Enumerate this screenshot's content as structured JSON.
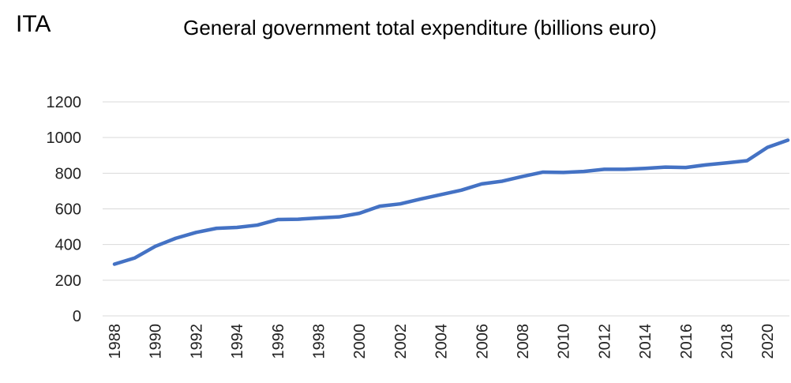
{
  "chart_data": {
    "type": "line",
    "label": "ITA",
    "title": "General government total expenditure (billions euro)",
    "x": [
      1988,
      1989,
      1990,
      1991,
      1992,
      1993,
      1994,
      1995,
      1996,
      1997,
      1998,
      1999,
      2000,
      2001,
      2002,
      2003,
      2004,
      2005,
      2006,
      2007,
      2008,
      2009,
      2010,
      2011,
      2012,
      2013,
      2014,
      2015,
      2016,
      2017,
      2018,
      2019,
      2020,
      2021
    ],
    "series": [
      {
        "name": "General government total expenditure",
        "color": "#4472c4",
        "values": [
          290,
          325,
          390,
          435,
          468,
          491,
          496,
          509,
          540,
          542,
          549,
          555,
          575,
          615,
          628,
          655,
          680,
          705,
          740,
          755,
          782,
          806,
          804,
          810,
          822,
          822,
          827,
          834,
          832,
          847,
          858,
          870,
          945,
          985
        ]
      }
    ],
    "xlim": [
      1988,
      2021
    ],
    "xticks": [
      1988,
      1990,
      1992,
      1994,
      1996,
      1998,
      2000,
      2002,
      2004,
      2006,
      2008,
      2010,
      2012,
      2014,
      2016,
      2018,
      2020
    ],
    "ylim": [
      0,
      1200
    ],
    "yticks": [
      0,
      200,
      400,
      600,
      800,
      1000,
      1200
    ],
    "grid": true
  }
}
